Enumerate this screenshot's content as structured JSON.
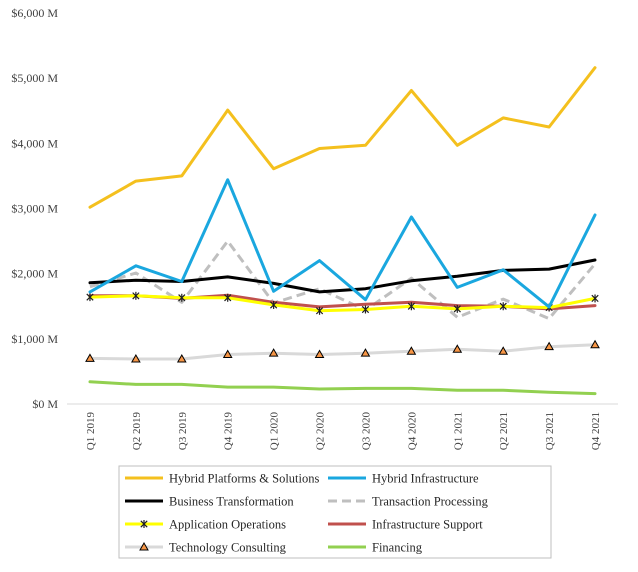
{
  "chart_data": {
    "type": "line",
    "title": "",
    "xlabel": "",
    "ylabel": "",
    "categories": [
      "Q1 2019",
      "Q2 2019",
      "Q3 2019",
      "Q4 2019",
      "Q1 2020",
      "Q2 2020",
      "Q3 2020",
      "Q4 2020",
      "Q1 2021",
      "Q2 2021",
      "Q3 2021",
      "Q4 2021"
    ],
    "ylim": [
      0,
      6000
    ],
    "yticks": [
      0,
      1000,
      2000,
      3000,
      4000,
      5000,
      6000
    ],
    "ytick_labels": [
      "$0 M",
      "$1,000 M",
      "$2,000 M",
      "$3,000 M",
      "$4,000 M",
      "$5,000 M",
      "$6,000 M"
    ],
    "grid": false,
    "legend_position": "bottom",
    "series": [
      {
        "name": "Hybrid Platforms & Solutions",
        "color": "#F4C01E",
        "dash": "solid",
        "marker": "none",
        "values": [
          3020,
          3420,
          3500,
          4510,
          3610,
          3920,
          3970,
          4810,
          3970,
          4390,
          4250,
          5160
        ]
      },
      {
        "name": "Hybrid Infrastructure",
        "color": "#1AA7DF",
        "dash": "solid",
        "marker": "none",
        "values": [
          1720,
          2120,
          1880,
          3440,
          1730,
          2200,
          1600,
          2870,
          1790,
          2060,
          1490,
          2900
        ]
      },
      {
        "name": "Business Transformation",
        "color": "#000000",
        "dash": "solid",
        "marker": "none",
        "values": [
          1860,
          1900,
          1880,
          1950,
          1850,
          1720,
          1770,
          1890,
          1960,
          2050,
          2070,
          2210
        ]
      },
      {
        "name": "Transaction Processing",
        "color": "#BFBFBF",
        "dash": "dashed",
        "marker": "none",
        "values": [
          1800,
          2010,
          1560,
          2500,
          1550,
          1770,
          1440,
          1930,
          1330,
          1610,
          1310,
          2150
        ]
      },
      {
        "name": "Application Operations",
        "color": "#FFFF00",
        "dash": "solid",
        "marker": "star",
        "values": [
          1640,
          1660,
          1630,
          1630,
          1520,
          1430,
          1450,
          1500,
          1460,
          1500,
          1480,
          1620
        ]
      },
      {
        "name": "Infrastructure Support",
        "color": "#C0504D",
        "dash": "solid",
        "marker": "none",
        "values": [
          1660,
          1660,
          1620,
          1670,
          1560,
          1490,
          1530,
          1560,
          1510,
          1500,
          1460,
          1510
        ]
      },
      {
        "name": "Technology Consulting",
        "color": "#D9D9D9",
        "dash": "solid",
        "marker": "triangle",
        "values": [
          700,
          690,
          690,
          760,
          780,
          760,
          780,
          810,
          840,
          810,
          880,
          910
        ]
      },
      {
        "name": "Financing",
        "color": "#92D050",
        "dash": "solid",
        "marker": "none",
        "values": [
          340,
          300,
          300,
          260,
          260,
          230,
          240,
          240,
          210,
          210,
          180,
          160
        ]
      }
    ]
  }
}
